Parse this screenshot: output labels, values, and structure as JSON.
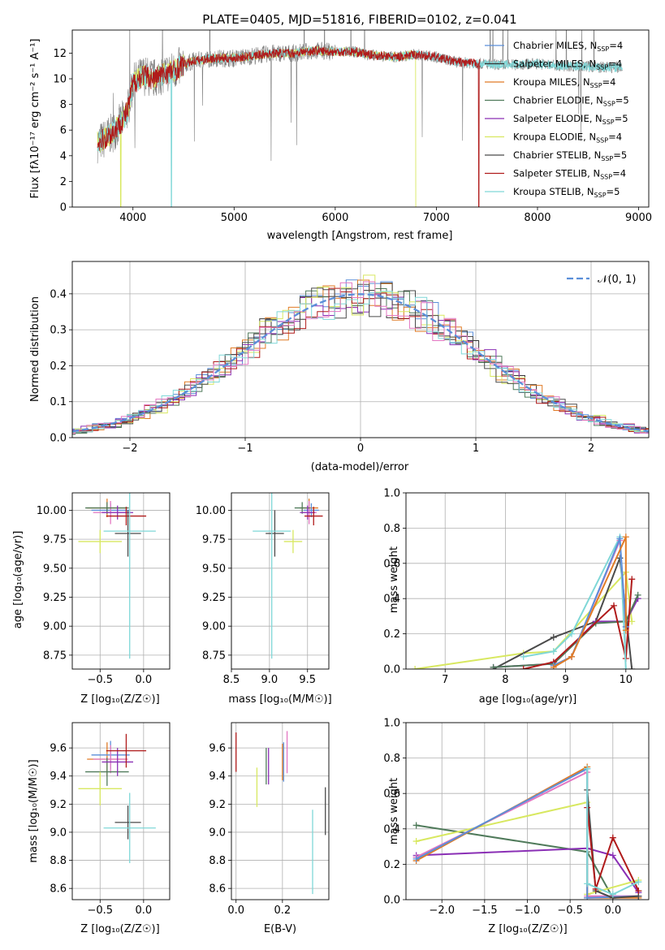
{
  "colors": {
    "chabrier_miles": "#5b8fd9",
    "salpeter_miles": "#333333",
    "kroupa_miles": "#e07b26",
    "chabrier_elodie": "#4f7a5a",
    "salpeter_elodie": "#8a2fb5",
    "kroupa_elodie": "#d8e860",
    "chabrier_stelib": "#4a4a4a",
    "salpeter_stelib": "#b01b1b",
    "kroupa_stelib": "#7fd7d7",
    "pink": "#e377c2",
    "gray": "#7f7f7f",
    "normal": "#5b8fd9",
    "grid": "#b0b0b0"
  },
  "chart_data": [
    {
      "type": "line",
      "title": "PLATE=0405, MJD=51816, FIBERID=0102, z=0.041",
      "xlabel": "wavelength [Angstrom, rest frame]",
      "ylabel": "Flux [fλ10⁻¹⁷ erg cm⁻² s⁻¹ A⁻¹]",
      "xlim": [
        3400,
        9100
      ],
      "ylim": [
        0,
        13.8
      ],
      "xticks": [
        4000,
        5000,
        6000,
        7000,
        8000,
        9000
      ],
      "yticks": [
        0,
        2,
        4,
        6,
        8,
        10,
        12
      ],
      "grid": false,
      "legend_position": "right",
      "legend": [
        {
          "label": "Chabrier MILES, N",
          "sub": "SSP",
          "tail": "=4",
          "color_key": "chabrier_miles"
        },
        {
          "label": "Salpeter MILES, N",
          "sub": "SSP",
          "tail": "=4",
          "color_key": "salpeter_miles"
        },
        {
          "label": "Kroupa MILES, N",
          "sub": "SSP",
          "tail": "=4",
          "color_key": "kroupa_miles"
        },
        {
          "label": "Chabrier ELODIE, N",
          "sub": "SSP",
          "tail": "=5",
          "color_key": "chabrier_elodie"
        },
        {
          "label": "Salpeter ELODIE, N",
          "sub": "SSP",
          "tail": "=5",
          "color_key": "salpeter_elodie"
        },
        {
          "label": "Kroupa ELODIE, N",
          "sub": "SSP",
          "tail": "=4",
          "color_key": "kroupa_elodie"
        },
        {
          "label": "Chabrier STELIB, N",
          "sub": "SSP",
          "tail": "=5",
          "color_key": "chabrier_stelib"
        },
        {
          "label": "Salpeter STELIB, N",
          "sub": "SSP",
          "tail": "=4",
          "color_key": "salpeter_stelib"
        },
        {
          "label": "Kroupa STELIB, N",
          "sub": "SSP",
          "tail": "=5",
          "color_key": "kroupa_stelib"
        }
      ],
      "continuum": {
        "x": [
          3650,
          3700,
          3800,
          3900,
          3950,
          4000,
          4100,
          4200,
          4300,
          4400,
          4500,
          4600,
          4800,
          5000,
          5200,
          5400,
          5600,
          5800,
          6000,
          6200,
          6400,
          6600,
          6800,
          7000,
          7200,
          7400,
          7600,
          7800,
          8000,
          8200,
          8400,
          8600,
          8800
        ],
        "y": [
          5.0,
          5.2,
          5.8,
          6.8,
          7.6,
          9.6,
          10.3,
          10.0,
          10.4,
          10.6,
          11.1,
          11.4,
          11.6,
          11.6,
          11.8,
          12.0,
          12.0,
          12.2,
          12.1,
          12.1,
          11.8,
          11.7,
          11.9,
          11.7,
          11.3,
          11.2,
          11.1,
          11.1,
          11.2,
          11.0,
          11.0,
          10.9,
          10.9
        ]
      },
      "spectra": [
        {
          "name": "Salpeter STELIB",
          "color_key": "salpeter_stelib",
          "xrange": [
            3650,
            7430
          ],
          "dropouts": [
            7420
          ]
        },
        {
          "name": "Kroupa STELIB",
          "color_key": "kroupa_stelib",
          "xrange": [
            3650,
            8840
          ],
          "dropouts": [
            4380
          ]
        },
        {
          "name": "Kroupa ELODIE",
          "color_key": "kroupa_elodie",
          "xrange": [
            3650,
            6800
          ],
          "dropouts": [
            3880,
            6800
          ]
        },
        {
          "name": "observed",
          "color_key": "gray",
          "xrange": [
            3650,
            8840
          ],
          "dropouts": []
        }
      ]
    },
    {
      "type": "line",
      "xlabel": "(data-model)/error",
      "ylabel": "Normed distribution",
      "xlim": [
        -2.5,
        2.5
      ],
      "ylim": [
        0,
        0.49
      ],
      "xticks": [
        -2,
        -1,
        0,
        1,
        2
      ],
      "yticks": [
        0.0,
        0.1,
        0.2,
        0.3,
        0.4
      ],
      "grid": true,
      "legend_position": "top-right",
      "legend": [
        {
          "label": "𝒩(0, 1)",
          "color_key": "normal",
          "dashed": true
        }
      ],
      "bin_width": 0.1,
      "hist_series": [
        {
          "color_key": "chabrier_miles"
        },
        {
          "color_key": "salpeter_miles"
        },
        {
          "color_key": "kroupa_miles"
        },
        {
          "color_key": "chabrier_elodie"
        },
        {
          "color_key": "salpeter_elodie"
        },
        {
          "color_key": "kroupa_elodie"
        },
        {
          "color_key": "chabrier_stelib"
        },
        {
          "color_key": "salpeter_stelib"
        },
        {
          "color_key": "kroupa_stelib"
        },
        {
          "color_key": "pink"
        }
      ]
    },
    {
      "type": "scatter",
      "xlabel": "Z [log₁₀(Z/Z☉)]",
      "ylabel": "age [log₁₀(age/yr)]",
      "xlim": [
        -0.82,
        0.3
      ],
      "ylim": [
        8.63,
        10.15
      ],
      "xticks": [
        -0.5,
        0.0
      ],
      "yticks": [
        8.75,
        9.0,
        9.25,
        9.5,
        9.75,
        10.0
      ],
      "grid": true,
      "points": [
        {
          "x": -0.42,
          "y": 10.02,
          "xerr": 0.23,
          "yerr": 0.08,
          "color_key": "kroupa_miles"
        },
        {
          "x": -0.38,
          "y": 10.0,
          "xerr": 0.22,
          "yerr": 0.06,
          "color_key": "chabrier_miles"
        },
        {
          "x": -0.38,
          "y": 9.98,
          "xerr": 0.2,
          "yerr": 0.1,
          "color_key": "pink"
        },
        {
          "x": -0.42,
          "y": 10.02,
          "xerr": 0.25,
          "yerr": 0.05,
          "color_key": "chabrier_elodie"
        },
        {
          "x": -0.3,
          "y": 9.98,
          "xerr": 0.18,
          "yerr": 0.06,
          "color_key": "salpeter_elodie"
        },
        {
          "x": -0.2,
          "y": 9.95,
          "xerr": 0.23,
          "yerr": 0.08,
          "color_key": "salpeter_stelib"
        },
        {
          "x": -0.5,
          "y": 9.73,
          "xerr": 0.25,
          "yerr": 0.1,
          "color_key": "kroupa_elodie"
        },
        {
          "x": -0.18,
          "y": 9.8,
          "xerr": 0.15,
          "yerr": 0.2,
          "color_key": "chabrier_stelib"
        },
        {
          "x": -0.16,
          "y": 9.82,
          "xerr": 0.3,
          "yerr": 1.1,
          "color_key": "kroupa_stelib"
        }
      ]
    },
    {
      "type": "scatter",
      "xlabel": "mass [log₁₀(M/M☉)]",
      "ylabel": "",
      "xlim": [
        8.5,
        9.78
      ],
      "ylim": [
        8.63,
        10.15
      ],
      "xticks": [
        8.5,
        9.0,
        9.5
      ],
      "yticks": [
        8.75,
        9.0,
        9.25,
        9.5,
        9.75,
        10.0
      ],
      "grid": true,
      "points": [
        {
          "x": 9.52,
          "y": 10.02,
          "xerr": 0.12,
          "yerr": 0.08,
          "color_key": "kroupa_miles"
        },
        {
          "x": 9.55,
          "y": 10.0,
          "xerr": 0.1,
          "yerr": 0.06,
          "color_key": "chabrier_miles"
        },
        {
          "x": 9.52,
          "y": 9.98,
          "xerr": 0.1,
          "yerr": 0.1,
          "color_key": "pink"
        },
        {
          "x": 9.43,
          "y": 10.02,
          "xerr": 0.1,
          "yerr": 0.05,
          "color_key": "chabrier_elodie"
        },
        {
          "x": 9.5,
          "y": 9.98,
          "xerr": 0.1,
          "yerr": 0.06,
          "color_key": "salpeter_elodie"
        },
        {
          "x": 9.58,
          "y": 9.95,
          "xerr": 0.12,
          "yerr": 0.08,
          "color_key": "salpeter_stelib"
        },
        {
          "x": 9.31,
          "y": 9.73,
          "xerr": 0.12,
          "yerr": 0.1,
          "color_key": "kroupa_elodie"
        },
        {
          "x": 9.07,
          "y": 9.8,
          "xerr": 0.12,
          "yerr": 0.2,
          "color_key": "chabrier_stelib"
        },
        {
          "x": 9.03,
          "y": 9.82,
          "xerr": 0.25,
          "yerr": 1.1,
          "color_key": "kroupa_stelib"
        }
      ]
    },
    {
      "type": "line",
      "xlabel": "age [log₁₀(age/yr)]",
      "ylabel": "mass weight",
      "xlim": [
        6.35,
        10.38
      ],
      "ylim": [
        0,
        1.0
      ],
      "xticks": [
        7,
        8,
        9,
        10
      ],
      "yticks": [
        0.0,
        0.2,
        0.4,
        0.6,
        0.8,
        1.0
      ],
      "grid": true,
      "series": [
        {
          "color_key": "kroupa_elodie",
          "x": [
            6.5,
            8.3,
            8.8,
            10.0,
            10.1
          ],
          "y": [
            0.0,
            0.09,
            0.1,
            0.55,
            0.27
          ]
        },
        {
          "color_key": "chabrier_stelib",
          "x": [
            7.8,
            8.8,
            9.5,
            9.9,
            10.1
          ],
          "y": [
            0.0,
            0.18,
            0.27,
            0.63,
            0.0
          ]
        },
        {
          "color_key": "salpeter_elodie",
          "x": [
            7.8,
            8.8,
            9.5,
            10.0,
            10.2
          ],
          "y": [
            0.01,
            0.03,
            0.27,
            0.27,
            0.4
          ]
        },
        {
          "color_key": "chabrier_elodie",
          "x": [
            7.8,
            8.8,
            9.5,
            10.0,
            10.2
          ],
          "y": [
            0.01,
            0.03,
            0.26,
            0.27,
            0.42
          ]
        },
        {
          "color_key": "salpeter_stelib",
          "x": [
            8.3,
            8.8,
            9.8,
            10.0,
            10.1
          ],
          "y": [
            0.0,
            0.04,
            0.36,
            0.06,
            0.51
          ]
        },
        {
          "color_key": "kroupa_stelib",
          "x": [
            8.3,
            8.8,
            9.1,
            9.9,
            10.0
          ],
          "y": [
            0.07,
            0.1,
            0.2,
            0.75,
            0.0
          ]
        },
        {
          "color_key": "pink",
          "x": [
            8.8,
            9.1,
            9.9,
            10.0
          ],
          "y": [
            0.02,
            0.07,
            0.73,
            0.24
          ]
        },
        {
          "color_key": "chabrier_miles",
          "x": [
            8.8,
            9.1,
            9.9,
            10.0
          ],
          "y": [
            0.02,
            0.07,
            0.74,
            0.24
          ]
        },
        {
          "color_key": "kroupa_miles",
          "x": [
            8.8,
            9.1,
            10.0,
            10.0
          ],
          "y": [
            0.01,
            0.07,
            0.75,
            0.22
          ]
        }
      ]
    },
    {
      "type": "scatter",
      "xlabel": "Z [log₁₀(Z/Z☉)]",
      "ylabel": "mass [log₁₀(M/M☉)]",
      "xlim": [
        -0.82,
        0.3
      ],
      "ylim": [
        8.52,
        9.78
      ],
      "xticks": [
        -0.5,
        0.0
      ],
      "yticks": [
        8.6,
        8.8,
        9.0,
        9.2,
        9.4,
        9.6
      ],
      "grid": true,
      "points": [
        {
          "x": -0.42,
          "y": 9.52,
          "xerr": 0.23,
          "yerr": 0.12,
          "color_key": "kroupa_miles"
        },
        {
          "x": -0.38,
          "y": 9.55,
          "xerr": 0.22,
          "yerr": 0.1,
          "color_key": "chabrier_miles"
        },
        {
          "x": -0.38,
          "y": 9.52,
          "xerr": 0.2,
          "yerr": 0.1,
          "color_key": "pink"
        },
        {
          "x": -0.42,
          "y": 9.43,
          "xerr": 0.25,
          "yerr": 0.1,
          "color_key": "chabrier_elodie"
        },
        {
          "x": -0.3,
          "y": 9.5,
          "xerr": 0.18,
          "yerr": 0.1,
          "color_key": "salpeter_elodie"
        },
        {
          "x": -0.2,
          "y": 9.58,
          "xerr": 0.23,
          "yerr": 0.12,
          "color_key": "salpeter_stelib"
        },
        {
          "x": -0.5,
          "y": 9.31,
          "xerr": 0.25,
          "yerr": 0.12,
          "color_key": "kroupa_elodie"
        },
        {
          "x": -0.18,
          "y": 9.07,
          "xerr": 0.15,
          "yerr": 0.12,
          "color_key": "chabrier_stelib"
        },
        {
          "x": -0.16,
          "y": 9.03,
          "xerr": 0.3,
          "yerr": 0.25,
          "color_key": "kroupa_stelib"
        }
      ]
    },
    {
      "type": "scatter",
      "xlabel": "E(B-V)",
      "ylabel": "",
      "xlim": [
        -0.02,
        0.4
      ],
      "ylim": [
        8.52,
        9.78
      ],
      "xticks": [
        0.0,
        0.2
      ],
      "yticks": [
        8.6,
        8.8,
        9.0,
        9.2,
        9.4,
        9.6
      ],
      "grid": true,
      "bars": [
        {
          "x": 0.0,
          "y": 9.57,
          "yerr": 0.14,
          "color_key": "salpeter_stelib"
        },
        {
          "x": 0.09,
          "y": 9.32,
          "yerr": 0.14,
          "color_key": "kroupa_elodie"
        },
        {
          "x": 0.13,
          "y": 9.47,
          "yerr": 0.13,
          "color_key": "chabrier_elodie"
        },
        {
          "x": 0.14,
          "y": 9.47,
          "yerr": 0.13,
          "color_key": "salpeter_elodie"
        },
        {
          "x": 0.2,
          "y": 9.5,
          "yerr": 0.13,
          "color_key": "kroupa_miles"
        },
        {
          "x": 0.205,
          "y": 9.5,
          "yerr": 0.14,
          "color_key": "chabrier_miles"
        },
        {
          "x": 0.22,
          "y": 9.57,
          "yerr": 0.15,
          "color_key": "pink"
        },
        {
          "x": 0.33,
          "y": 8.86,
          "yerr": 0.3,
          "color_key": "kroupa_stelib"
        },
        {
          "x": 0.385,
          "y": 9.15,
          "yerr": 0.17,
          "color_key": "chabrier_stelib"
        }
      ]
    },
    {
      "type": "line",
      "xlabel": "Z [log₁₀(Z/Z☉)]",
      "ylabel": "mass weight",
      "xlim": [
        -2.42,
        0.42
      ],
      "ylim": [
        0,
        1.0
      ],
      "xticks": [
        -2.0,
        -1.5,
        -1.0,
        -0.5,
        0.0
      ],
      "yticks": [
        0.0,
        0.2,
        0.4,
        0.6,
        0.8,
        1.0
      ],
      "grid": true,
      "series": [
        {
          "color_key": "chabrier_elodie",
          "x": [
            -2.3,
            -0.3,
            0.0,
            0.3
          ],
          "y": [
            0.42,
            0.27,
            0.01,
            0.02
          ]
        },
        {
          "color_key": "salpeter_elodie",
          "x": [
            -2.3,
            -0.3,
            0.0,
            0.3
          ],
          "y": [
            0.25,
            0.29,
            0.25,
            0.04
          ]
        },
        {
          "color_key": "kroupa_elodie",
          "x": [
            -2.3,
            -0.3,
            -0.3,
            0.3
          ],
          "y": [
            0.33,
            0.55,
            0.03,
            0.11
          ]
        },
        {
          "color_key": "pink",
          "x": [
            -2.3,
            -0.3,
            -0.3,
            0.0,
            0.3
          ],
          "y": [
            0.24,
            0.72,
            0.02,
            0.02,
            0.02
          ]
        },
        {
          "color_key": "kroupa_miles",
          "x": [
            -2.3,
            -0.3,
            -0.3,
            0.3
          ],
          "y": [
            0.22,
            0.75,
            0.01,
            0.01
          ]
        },
        {
          "color_key": "chabrier_miles",
          "x": [
            -2.3,
            -0.3,
            -0.3,
            0.3
          ],
          "y": [
            0.23,
            0.74,
            0.01,
            0.02
          ]
        },
        {
          "color_key": "chabrier_stelib",
          "x": [
            -0.3,
            -0.2,
            0.0,
            0.3
          ],
          "y": [
            0.62,
            0.05,
            0.01,
            0.02
          ]
        },
        {
          "color_key": "salpeter_stelib",
          "x": [
            -0.3,
            -0.2,
            0.0,
            0.3
          ],
          "y": [
            0.52,
            0.06,
            0.35,
            0.05
          ]
        },
        {
          "color_key": "kroupa_stelib",
          "x": [
            -0.3,
            -0.3,
            0.0,
            0.3
          ],
          "y": [
            0.74,
            0.09,
            0.03,
            0.1
          ]
        }
      ]
    }
  ]
}
